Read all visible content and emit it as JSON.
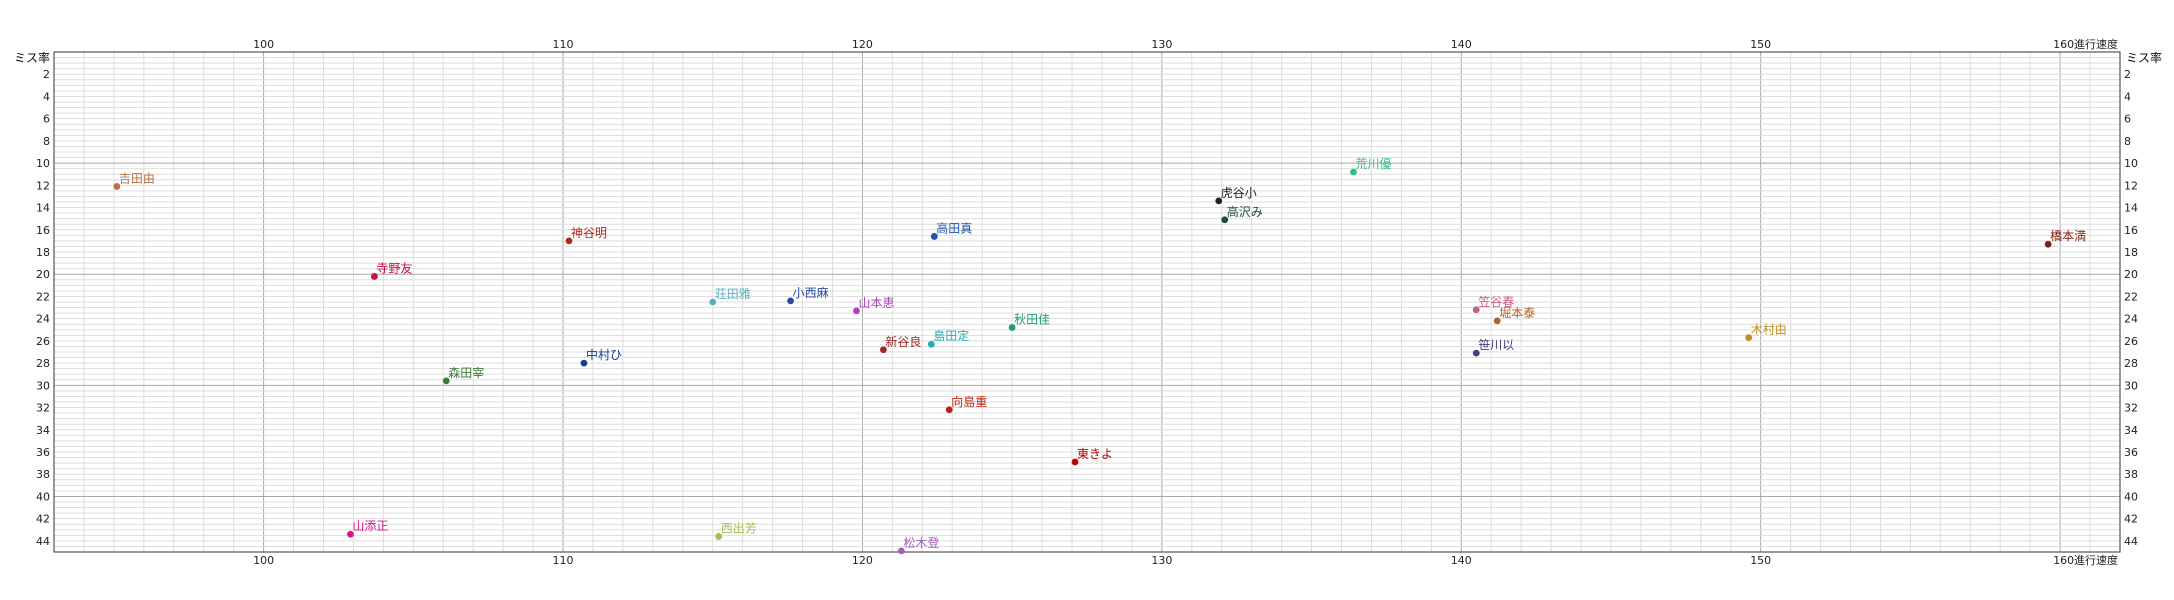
{
  "chart_data": {
    "type": "scatter",
    "title": "",
    "xlabel": "進行速度",
    "ylabel": "ミス率",
    "xlim": [
      93,
      162
    ],
    "ylim": [
      0,
      45
    ],
    "y_inverted": true,
    "x_ticks": [
      100,
      110,
      120,
      130,
      140,
      150,
      160
    ],
    "y_ticks": [
      2,
      4,
      6,
      8,
      10,
      12,
      14,
      16,
      18,
      20,
      22,
      24,
      26,
      28,
      30,
      32,
      34,
      36,
      38,
      40,
      42,
      44
    ],
    "grid": true,
    "points": [
      {
        "label": "吉田由",
        "x": 95.1,
        "y": 12.1,
        "color": "#b5734a"
      },
      {
        "label": "寺野友",
        "x": 103.7,
        "y": 20.2,
        "color": "#c8103c"
      },
      {
        "label": "神谷明",
        "x": 110.2,
        "y": 17.0,
        "color": "#b02814"
      },
      {
        "label": "森田宰",
        "x": 106.1,
        "y": 29.6,
        "color": "#3a7a3a"
      },
      {
        "label": "中村ひ",
        "x": 110.7,
        "y": 28.0,
        "color": "#163c9a"
      },
      {
        "label": "山添正",
        "x": 102.9,
        "y": 43.4,
        "color": "#d8158c"
      },
      {
        "label": "荘田雅",
        "x": 115.0,
        "y": 22.5,
        "color": "#5ab0c0"
      },
      {
        "label": "小西麻",
        "x": 117.6,
        "y": 22.4,
        "color": "#2a4aa0"
      },
      {
        "label": "山本恵",
        "x": 119.8,
        "y": 23.3,
        "color": "#b040c0"
      },
      {
        "label": "新谷良",
        "x": 120.7,
        "y": 26.8,
        "color": "#a02828"
      },
      {
        "label": "島田定",
        "x": 122.3,
        "y": 26.3,
        "color": "#20b0b0"
      },
      {
        "label": "高田真",
        "x": 122.4,
        "y": 16.6,
        "color": "#2050b0"
      },
      {
        "label": "向島重",
        "x": 122.9,
        "y": 32.2,
        "color": "#c02010"
      },
      {
        "label": "西出芳",
        "x": 115.2,
        "y": 43.6,
        "color": "#a0c050"
      },
      {
        "label": "松木登",
        "x": 121.3,
        "y": 44.9,
        "color": "#a060c0"
      },
      {
        "label": "秋田佳",
        "x": 125.0,
        "y": 24.8,
        "color": "#20a070"
      },
      {
        "label": "東きよ",
        "x": 127.1,
        "y": 36.9,
        "color": "#c00000"
      },
      {
        "label": "虎谷小",
        "x": 131.9,
        "y": 13.4,
        "color": "#222222"
      },
      {
        "label": "高沢み",
        "x": 132.1,
        "y": 15.1,
        "color": "#1a4a40"
      },
      {
        "label": "荒川優",
        "x": 136.4,
        "y": 10.8,
        "color": "#30c080"
      },
      {
        "label": "笠谷春",
        "x": 140.5,
        "y": 23.2,
        "color": "#c86080"
      },
      {
        "label": "堀本泰",
        "x": 141.2,
        "y": 24.2,
        "color": "#b86020"
      },
      {
        "label": "笹川以",
        "x": 140.5,
        "y": 27.1,
        "color": "#404080"
      },
      {
        "label": "木村由",
        "x": 149.6,
        "y": 25.7,
        "color": "#c09020"
      },
      {
        "label": "橋本満",
        "x": 159.6,
        "y": 17.3,
        "color": "#802010"
      }
    ]
  }
}
